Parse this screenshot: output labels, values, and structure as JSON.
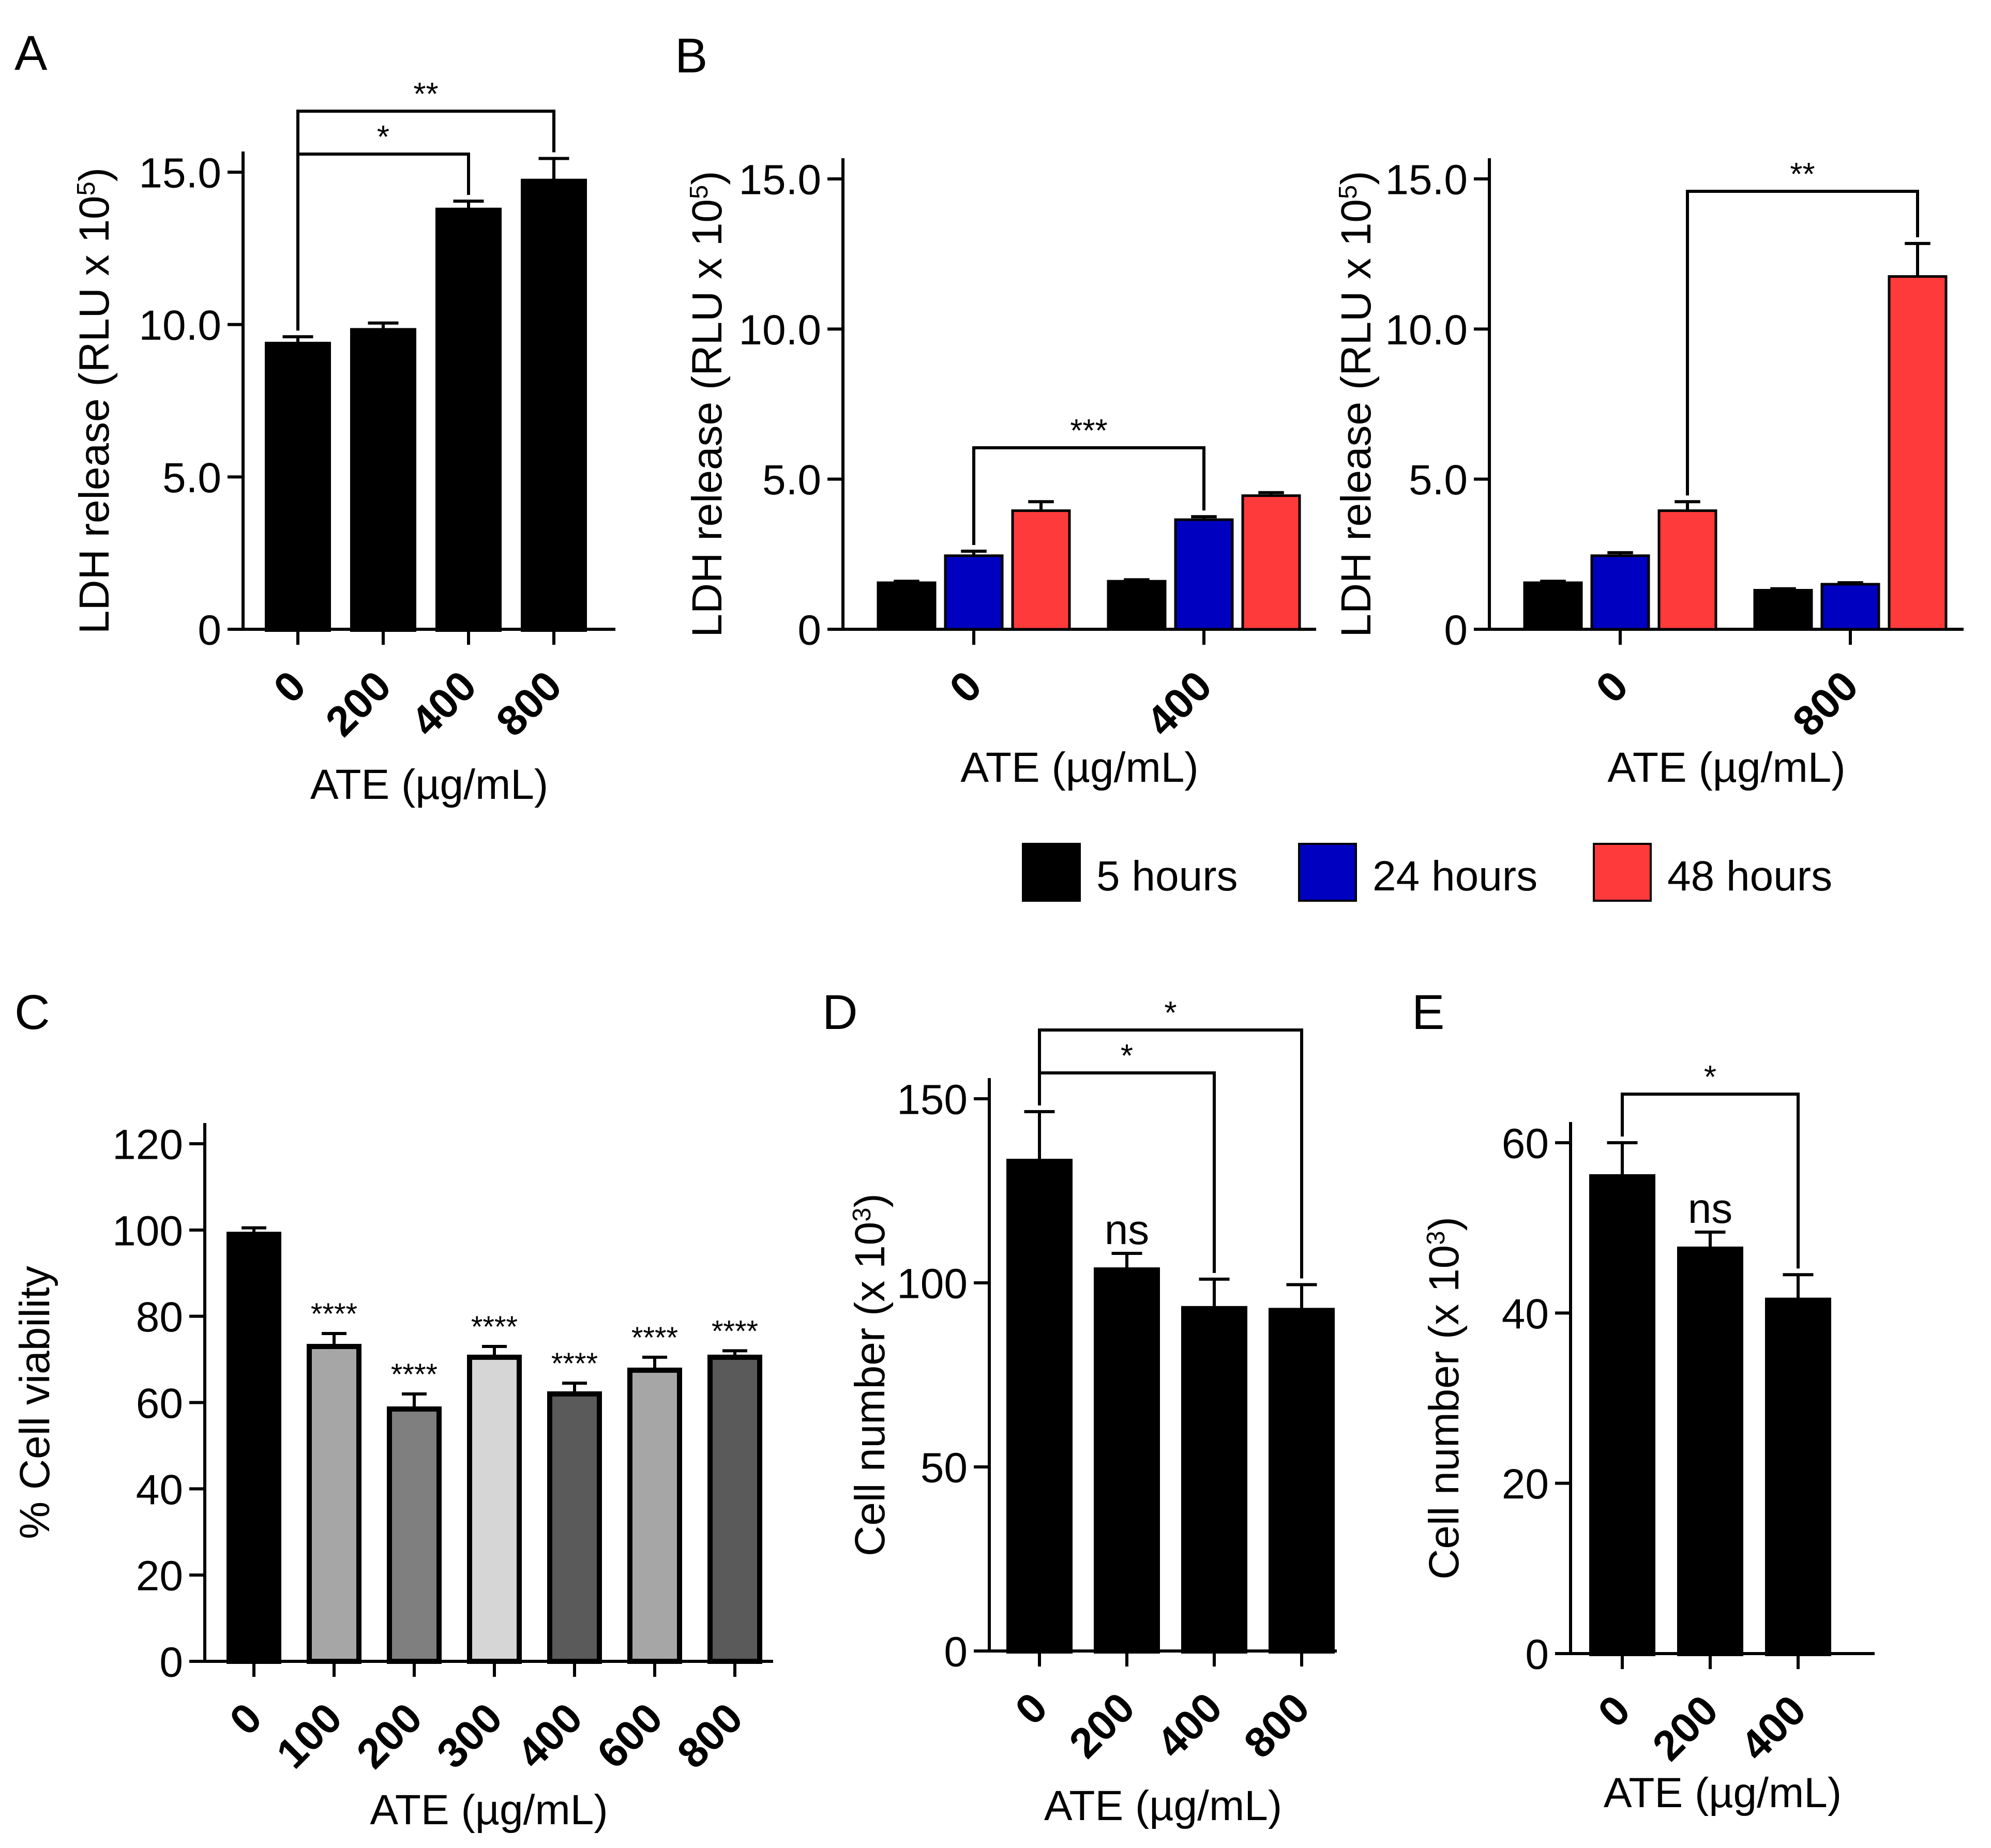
{
  "figure": {
    "panel_letters": [
      "A",
      "B",
      "C",
      "D",
      "E"
    ],
    "legend": {
      "items": [
        {
          "label": "5 hours",
          "color": "#000000"
        },
        {
          "label": "24 hours",
          "color": "#0000c0"
        },
        {
          "label": "48 hours",
          "color": "#ff3a3a"
        }
      ]
    }
  },
  "chart_data": [
    {
      "panel": "A",
      "type": "bar",
      "categories": [
        "0",
        "200",
        "400",
        "800"
      ],
      "values": [
        9.35,
        9.8,
        13.75,
        14.7
      ],
      "errors": [
        0.25,
        0.25,
        0.3,
        0.75
      ],
      "colors": [
        "#000000",
        "#000000",
        "#000000",
        "#000000"
      ],
      "ylabel": "LDH release (RLU x 10^5)",
      "ylabel_base": "LDH release (RLU x 10",
      "ylabel_sup": "5",
      "ylabel_close": ")",
      "xlabel": "ATE (µg/mL)",
      "ylim": [
        0,
        15
      ],
      "yticks": [
        "0",
        "5.0",
        "10.0",
        "15.0"
      ],
      "annotations": [
        {
          "from": 0,
          "to": 2,
          "label": "*"
        },
        {
          "from": 0,
          "to": 3,
          "label": "**"
        }
      ]
    },
    {
      "panel": "B-left",
      "type": "bar",
      "categories": [
        "0",
        "400"
      ],
      "series": [
        {
          "name": "5 hours",
          "values": [
            1.55,
            1.6
          ],
          "errors": [
            0.05,
            0.05
          ],
          "color": "#000000"
        },
        {
          "name": "24 hours",
          "values": [
            2.45,
            3.65
          ],
          "errors": [
            0.15,
            0.1
          ],
          "color": "#0000c0"
        },
        {
          "name": "48 hours",
          "values": [
            3.95,
            4.45
          ],
          "errors": [
            0.3,
            0.1
          ],
          "color": "#ff3a3a"
        }
      ],
      "ylabel": "LDH release (RLU x 10^5)",
      "ylabel_base": "LDH release (RLU x 10",
      "ylabel_sup": "5",
      "ylabel_close": ")",
      "xlabel": "ATE (µg/mL)",
      "ylim": [
        0,
        15
      ],
      "yticks": [
        "0",
        "5.0",
        "10.0",
        "15.0"
      ],
      "annotations": [
        {
          "from": [
            0,
            1
          ],
          "to": [
            1,
            1
          ],
          "label": "***"
        }
      ]
    },
    {
      "panel": "B-right",
      "type": "bar",
      "categories": [
        "0",
        "800"
      ],
      "series": [
        {
          "name": "5 hours",
          "values": [
            1.55,
            1.3
          ],
          "errors": [
            0.05,
            0.05
          ],
          "color": "#000000"
        },
        {
          "name": "24 hours",
          "values": [
            2.45,
            1.5
          ],
          "errors": [
            0.1,
            0.05
          ],
          "color": "#0000c0"
        },
        {
          "name": "48 hours",
          "values": [
            3.95,
            11.75
          ],
          "errors": [
            0.3,
            1.1
          ],
          "color": "#ff3a3a"
        }
      ],
      "ylabel": "LDH release (RLU x 10^5)",
      "ylabel_base": "LDH release (RLU x 10",
      "ylabel_sup": "5",
      "ylabel_close": ")",
      "xlabel": "ATE (µg/mL)",
      "ylim": [
        0,
        15
      ],
      "yticks": [
        "0",
        "5.0",
        "10.0",
        "15.0"
      ],
      "annotations": [
        {
          "from": [
            0,
            2
          ],
          "to": [
            1,
            2
          ],
          "label": "**"
        }
      ]
    },
    {
      "panel": "C",
      "type": "bar",
      "categories": [
        "0",
        "100",
        "200",
        "300",
        "400",
        "600",
        "800"
      ],
      "values": [
        99,
        73,
        58.5,
        70.5,
        62,
        67.5,
        70.5
      ],
      "errors": [
        1.5,
        3,
        3.5,
        2.5,
        2.5,
        3,
        1.5
      ],
      "colors": [
        "#000000",
        "#a6a6a6",
        "#7f7f7f",
        "#d6d6d6",
        "#5a5a5a",
        "#a6a6a6",
        "#5a5a5a"
      ],
      "bar_labels": [
        "",
        "****",
        "****",
        "****",
        "****",
        "****",
        "****"
      ],
      "ylabel": "% Cell viability",
      "xlabel": "ATE (µg/mL)",
      "ylim": [
        0,
        120
      ],
      "yticks": [
        "0",
        "20",
        "40",
        "60",
        "80",
        "100",
        "120"
      ]
    },
    {
      "panel": "D",
      "type": "bar",
      "categories": [
        "0",
        "200",
        "400",
        "800"
      ],
      "values": [
        133,
        103.5,
        93,
        92.5
      ],
      "errors": [
        13.5,
        4.5,
        8,
        7
      ],
      "colors": [
        "#000000",
        "#000000",
        "#000000",
        "#000000"
      ],
      "bar_labels": [
        "",
        "ns",
        "",
        ""
      ],
      "ylabel": "Cell number (x 10^3)",
      "ylabel_base": "Cell number (x 10",
      "ylabel_sup": "3",
      "ylabel_close": ")",
      "xlabel": "ATE (µg/mL)",
      "ylim": [
        0,
        150
      ],
      "yticks": [
        "0",
        "50",
        "100",
        "150"
      ],
      "annotations": [
        {
          "from": 0,
          "to": 2,
          "label": "*"
        },
        {
          "from": 0,
          "to": 3,
          "label": "*"
        }
      ]
    },
    {
      "panel": "E",
      "type": "bar",
      "categories": [
        "0",
        "200",
        "400"
      ],
      "values": [
        56,
        47.5,
        41.5
      ],
      "errors": [
        4,
        2,
        3
      ],
      "colors": [
        "#000000",
        "#000000",
        "#000000"
      ],
      "bar_labels": [
        "",
        "ns",
        ""
      ],
      "ylabel": "Cell number (x 10^3)",
      "ylabel_base": "Cell number (x 10",
      "ylabel_sup": "3",
      "ylabel_close": ")",
      "xlabel": "ATE (µg/mL)",
      "ylim": [
        0,
        60
      ],
      "yticks": [
        "0",
        "20",
        "40",
        "60"
      ],
      "annotations": [
        {
          "from": 0,
          "to": 2,
          "label": "*"
        }
      ]
    }
  ]
}
